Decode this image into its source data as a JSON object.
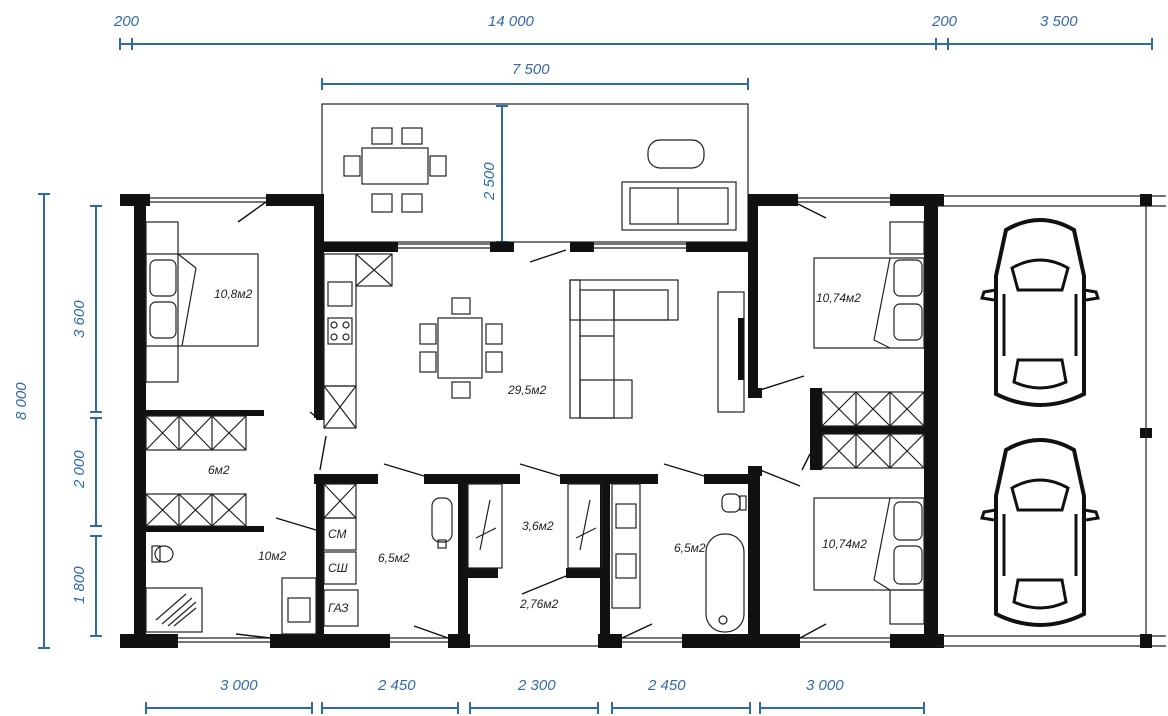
{
  "dimensions": {
    "top_overall": [
      "200",
      "14 000",
      "200",
      "3 500"
    ],
    "terrace_width": "7 500",
    "terrace_depth": "2 500",
    "left_overall": "8 000",
    "left_segments": [
      "3 600",
      "2 000",
      "1 800"
    ],
    "bottom_segments": [
      "3 000",
      "2 450",
      "2 300",
      "2 450",
      "3 000"
    ]
  },
  "rooms": {
    "bedroom_left": "10,8м2",
    "storage": "6м2",
    "bath_left": "10м2",
    "living": "29,5м2",
    "boiler": "6,5м2",
    "hall": "3,6м2",
    "corridor": "2,76м2",
    "bath_right": "6,5м2",
    "bedroom_right_top": "10,74м2",
    "bedroom_right_bottom": "10,74м2"
  },
  "appliances": {
    "washer": "СМ",
    "dryer": "СШ",
    "gas": "ГАЗ"
  },
  "colors": {
    "dimension": "#2f6aa8",
    "wall": "#111111",
    "line": "#222222"
  }
}
